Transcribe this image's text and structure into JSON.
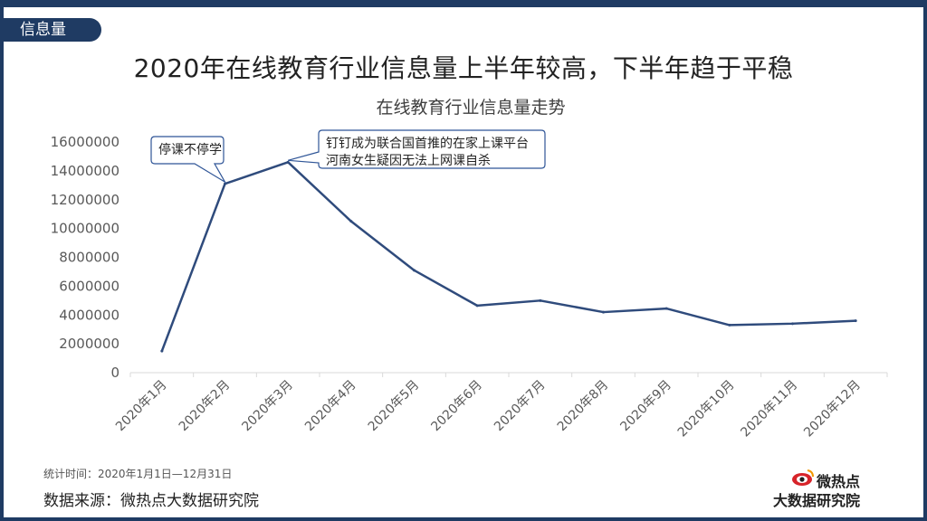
{
  "section_tag": "信息量",
  "headline": "2020年在线教育行业信息量上半年较高，下半年趋于平稳",
  "footnote": "统计时间：2020年1月1日—12月31日",
  "source": "数据来源：微热点大数据研究院",
  "brand": {
    "line1": "微热点",
    "line2": "大数据研究院",
    "logo_icon": "weibo-eye-icon"
  },
  "colors": {
    "line": "#2f4b7c",
    "frame": "#1f3b63",
    "grid": "#d9d9d9"
  },
  "chart_data": {
    "type": "line",
    "title": "在线教育行业信息量走势",
    "categories": [
      "2020年1月",
      "2020年2月",
      "2020年3月",
      "2020年4月",
      "2020年5月",
      "2020年6月",
      "2020年7月",
      "2020年8月",
      "2020年9月",
      "2020年10月",
      "2020年11月",
      "2020年12月"
    ],
    "series": [
      {
        "values": [
          1500000,
          13100000,
          14600000,
          10500000,
          7100000,
          4650000,
          5000000,
          4200000,
          4450000,
          3300000,
          3400000,
          3600000
        ]
      }
    ],
    "ylim": [
      0,
      16000000
    ],
    "yticks": [
      "0",
      "2000000",
      "4000000",
      "6000000",
      "8000000",
      "10000000",
      "12000000",
      "14000000",
      "16000000"
    ],
    "grid": false,
    "annotations": [
      {
        "point_index": 1,
        "lines": [
          "停课不停学"
        ]
      },
      {
        "point_index": 2,
        "lines": [
          "钉钉成为联合国首推的在家上课平台",
          "河南女生疑因无法上网课自杀"
        ]
      }
    ]
  }
}
